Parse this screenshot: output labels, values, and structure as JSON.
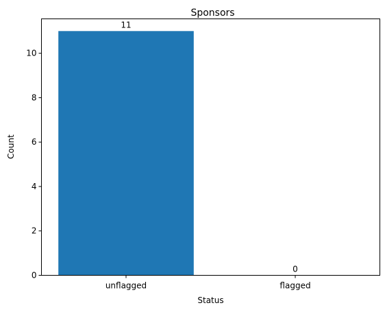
{
  "chart_data": {
    "type": "bar",
    "title": "Sponsors",
    "xlabel": "Status",
    "ylabel": "Count",
    "categories": [
      "unflagged",
      "flagged"
    ],
    "values": [
      11,
      0
    ],
    "data_labels": [
      "11",
      "0"
    ],
    "yticks": [
      0,
      2,
      4,
      6,
      8,
      10
    ],
    "ytick_labels": [
      "0",
      "2",
      "4",
      "6",
      "8",
      "10"
    ],
    "ylim": [
      0,
      11.55
    ],
    "grid": false,
    "bar_color": "#1f77b4"
  }
}
